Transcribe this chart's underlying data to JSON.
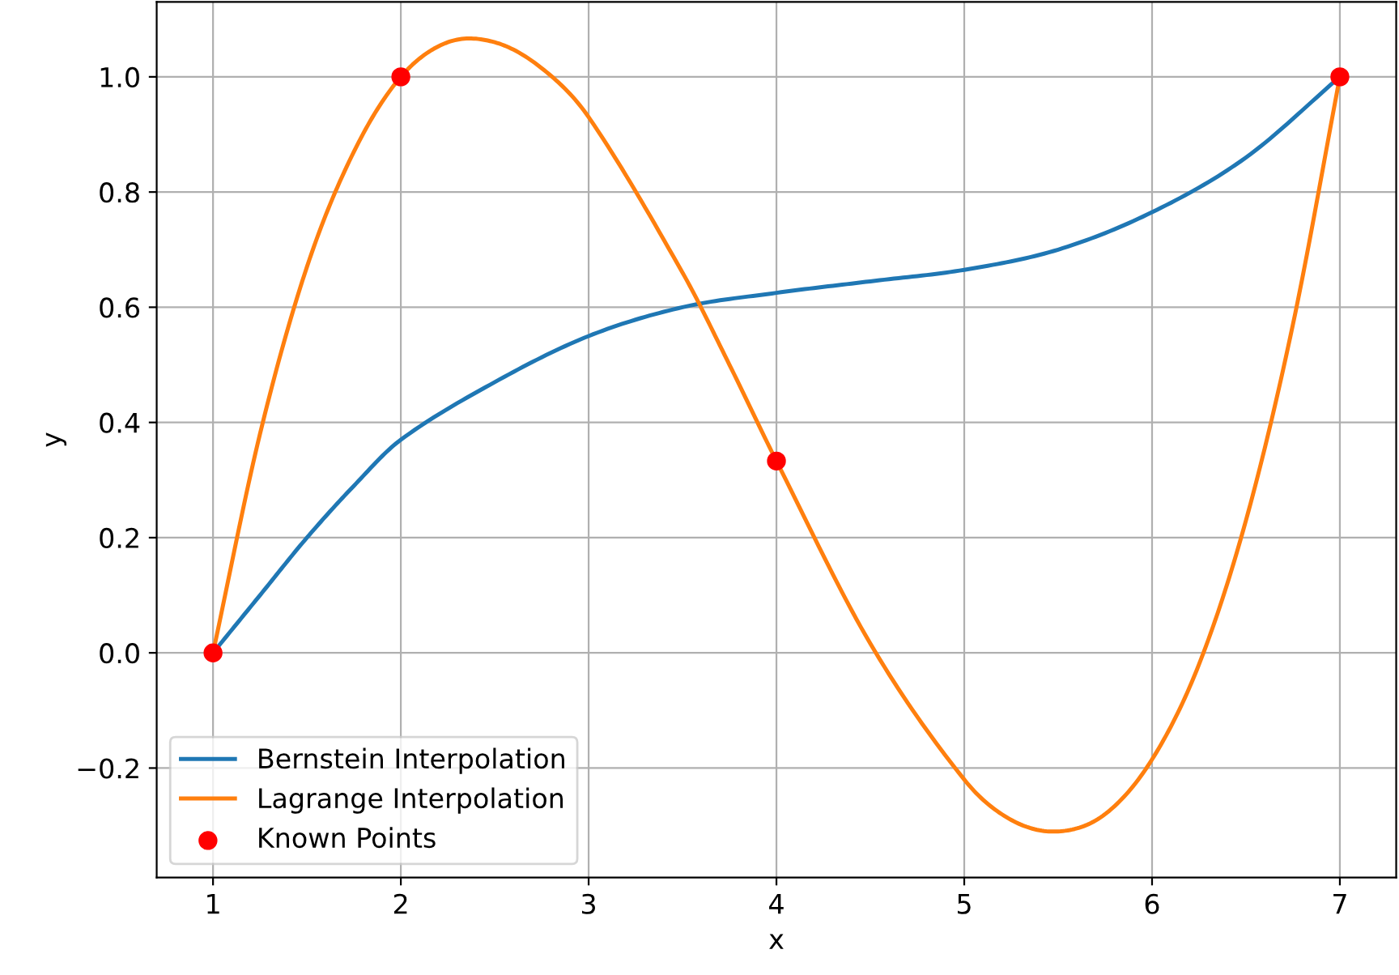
{
  "chart_data": {
    "type": "line",
    "xlabel": "x",
    "ylabel": "y",
    "xlim": [
      0.7,
      7.3
    ],
    "ylim": [
      -0.39,
      1.13
    ],
    "xticks": [
      1,
      2,
      3,
      4,
      5,
      6,
      7
    ],
    "yticks": [
      {
        "value": -0.2,
        "label": "−0.2"
      },
      {
        "value": 0.0,
        "label": "0.0"
      },
      {
        "value": 0.2,
        "label": "0.2"
      },
      {
        "value": 0.4,
        "label": "0.4"
      },
      {
        "value": 0.6,
        "label": "0.6"
      },
      {
        "value": 0.8,
        "label": "0.8"
      },
      {
        "value": 1.0,
        "label": "1.0"
      }
    ],
    "grid": true,
    "legend": "bottom left",
    "series": [
      {
        "name": "Bernstein Interpolation",
        "color": "#1f77b4",
        "x": [
          1,
          1.25,
          1.5,
          1.75,
          2,
          2.5,
          3,
          3.5,
          4,
          4.5,
          5,
          5.5,
          6,
          6.5,
          7
        ],
        "values": [
          0,
          0.1,
          0.2,
          0.29,
          0.37,
          0.47,
          0.55,
          0.6,
          0.625,
          0.645,
          0.665,
          0.7,
          0.765,
          0.86,
          1
        ]
      },
      {
        "name": "Lagrange Interpolation",
        "color": "#ff7f0e",
        "x": [
          1,
          1.25,
          1.5,
          1.75,
          2,
          2.25,
          2.5,
          2.75,
          3,
          3.5,
          3.75,
          4,
          4.5,
          5,
          5.25,
          5.5,
          5.75,
          6,
          6.25,
          6.5,
          6.75,
          7
        ],
        "values": [
          0,
          0.38,
          0.67,
          0.87,
          1,
          1.06,
          1.06,
          1.015,
          0.93,
          0.66,
          0.5,
          0.333,
          0.016,
          -0.22,
          -0.29,
          -0.31,
          -0.28,
          -0.185,
          -0.02,
          0.23,
          0.57,
          1
        ]
      },
      {
        "name": "Known Points",
        "type": "scatter",
        "color": "#ff0000",
        "x": [
          1,
          2,
          4,
          7
        ],
        "values": [
          0,
          1,
          0.333,
          1
        ]
      }
    ]
  }
}
